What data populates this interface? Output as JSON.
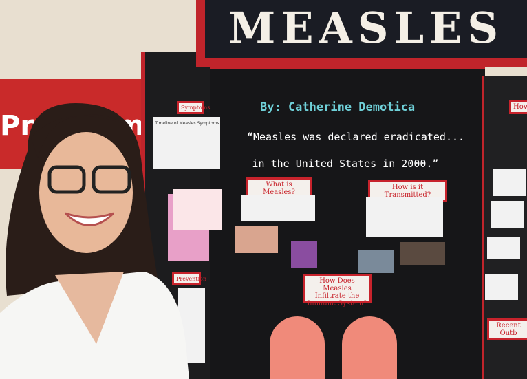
{
  "background_sign": {
    "left": "Pre",
    "right": "m"
  },
  "board": {
    "title": "MEASLES",
    "author": "By: Catherine Demotica",
    "quote": [
      "“Measles was declared eradicated...",
      "in the United States in 2000.”"
    ],
    "sections": {
      "symptoms": "Symptoms",
      "timeline": "Timeline of Measles Symptoms",
      "what": "What is Measles?",
      "transmitted": "How is it Transmitted?",
      "immune": "How Does Measles Infiltrate the Immune System?",
      "prevention": "Prevention",
      "recent": "Recent Outb",
      "how": "How"
    }
  }
}
